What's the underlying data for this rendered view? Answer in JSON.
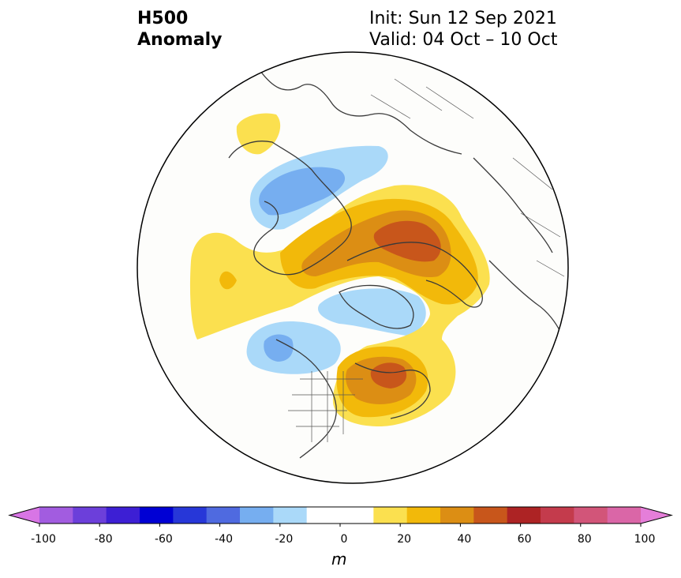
{
  "header": {
    "variable": "H500",
    "field": "Anomaly",
    "init": "Init: Sun 12 Sep 2021",
    "valid": "Valid: 04 Oct – 10 Oct"
  },
  "colorbar": {
    "unit": "m",
    "ticks": [
      "-100",
      "-80",
      "-60",
      "-40",
      "-20",
      "0",
      "20",
      "40",
      "60",
      "80",
      "100"
    ],
    "colors": [
      "#d875e5",
      "#a25ce0",
      "#6c3fda",
      "#3d1fd4",
      "#0000d4",
      "#2737d8",
      "#4f6ae0",
      "#76aef0",
      "#aad9f9",
      "#ffffff",
      "#ffffff",
      "#fbe04f",
      "#f2b90a",
      "#dc8e14",
      "#c8561b",
      "#ad2324",
      "#c43b4c",
      "#d25579",
      "#da66a7",
      "#e57ed9"
    ]
  },
  "map": {
    "projection": "north-polar-stereographic",
    "anomaly_regions": [
      {
        "name": "Eurasia positive anomaly",
        "level": "+50 to +60 m"
      },
      {
        "name": "Eastern North America positive anomaly",
        "level": "+50 to +60 m"
      },
      {
        "name": "North Atlantic positive anomaly",
        "level": "+20 to +30 m"
      },
      {
        "name": "Greenland negative anomaly",
        "level": "-20 to -30 m"
      },
      {
        "name": "Pacific negative anomaly",
        "level": "-30 to -40 m"
      },
      {
        "name": "Alaska negative anomaly",
        "level": "-30 to -40 m"
      }
    ]
  }
}
